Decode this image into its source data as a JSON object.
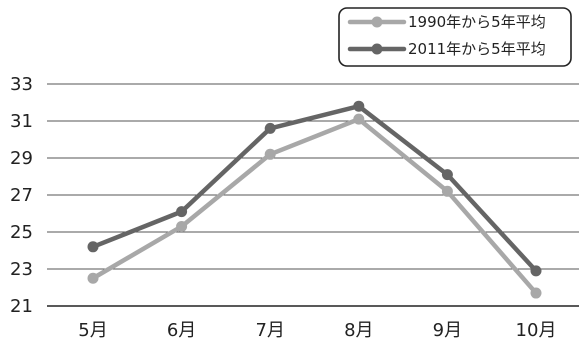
{
  "chart_data": {
    "type": "line",
    "categories": [
      "5月",
      "6月",
      "7月",
      "8月",
      "9月",
      "10月"
    ],
    "series": [
      {
        "name": "1990年から5年平均",
        "values": [
          22.5,
          25.3,
          29.2,
          31.1,
          27.2,
          21.7
        ],
        "color": "#a8a8a8"
      },
      {
        "name": "2011年から5年平均",
        "values": [
          24.2,
          26.1,
          30.6,
          31.8,
          28.1,
          22.9
        ],
        "color": "#656565"
      }
    ],
    "yticks": [
      "21",
      "23",
      "25",
      "27",
      "29",
      "31",
      "33"
    ],
    "ylim": [
      21,
      33
    ],
    "grid": true,
    "legend": "top-right",
    "title": "",
    "xlabel": "",
    "ylabel": ""
  }
}
